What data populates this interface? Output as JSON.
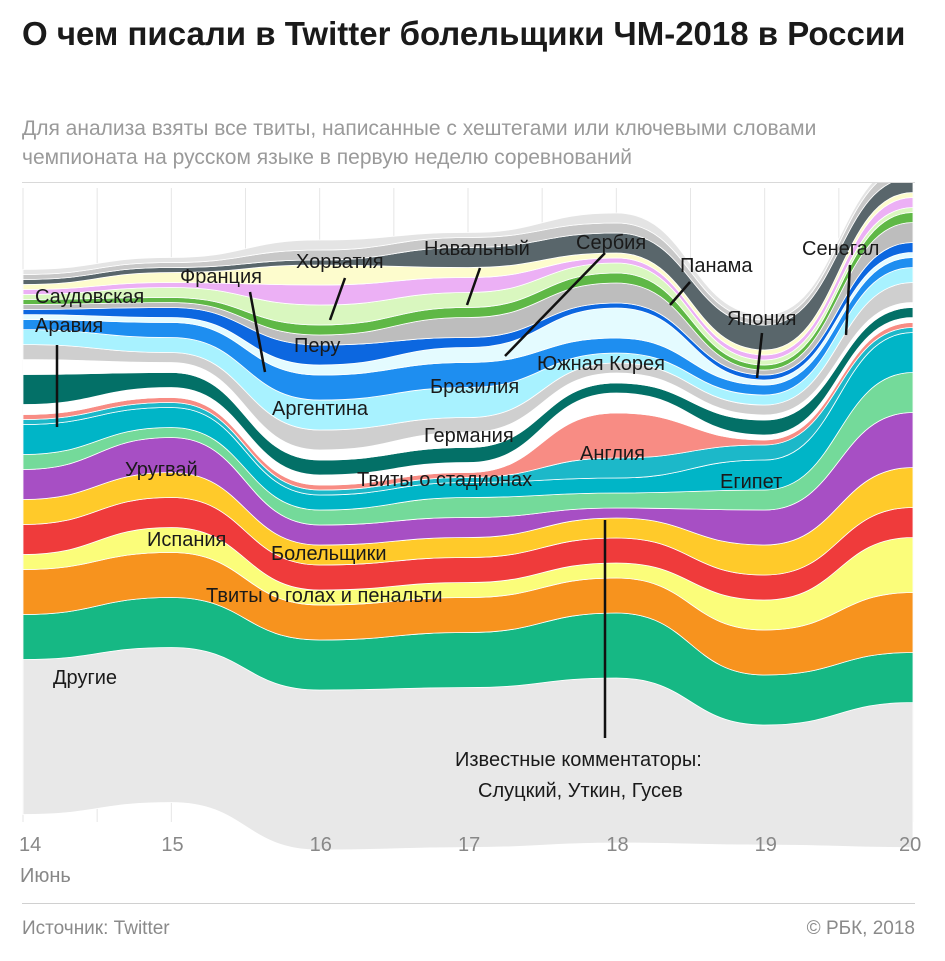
{
  "title": "О чем писали в Twitter болельщики ЧМ-2018 в России",
  "subtitle": "Для анализа взяты все твиты, написанные с хештегами или ключевыми словами чемпионата на русском языке в первую неделю соревнований",
  "source": "Источник: Twitter",
  "copyright": "© РБК, 2018",
  "chart_data": {
    "type": "area",
    "subtype": "streamgraph",
    "x_ticks": [
      "14",
      "15",
      "16",
      "17",
      "18",
      "19",
      "20"
    ],
    "x_unit_label": "Июнь",
    "grid": "vertical",
    "series": [
      {
        "name": "Другие",
        "color": "#e8e8e8",
        "values": [
          15.5,
          15.5,
          16,
          16,
          16.5,
          12,
          14.5
        ]
      },
      {
        "name": "Твиты о голах и пенальти",
        "color": "#16b884",
        "values": [
          4.5,
          5,
          5,
          5.5,
          6.5,
          5,
          5
        ]
      },
      {
        "name": "Болельщики",
        "color": "#f7931e",
        "values": [
          4.5,
          4.5,
          3.5,
          3.5,
          3.5,
          4.5,
          6
        ]
      },
      {
        "name": "Испания",
        "color": "#fbfd7a",
        "values": [
          1.5,
          2.5,
          1.5,
          1.5,
          1.5,
          3,
          5.5
        ]
      },
      {
        "name": "",
        "color": "#ef3b3b",
        "values": [
          3,
          3,
          2.5,
          2.5,
          2.5,
          2.5,
          3
        ]
      },
      {
        "name": "",
        "color": "#ffca2a",
        "values": [
          2.5,
          2.5,
          2,
          2,
          2,
          3,
          4
        ]
      },
      {
        "name": "Уругвай",
        "color": "#a74fc4",
        "values": [
          3,
          3.5,
          2,
          2,
          1,
          3.5,
          5.5
        ]
      },
      {
        "name": "Твиты о стадионах",
        "color": "#74da9a",
        "values": [
          1.5,
          1,
          1.5,
          2,
          1.5,
          2,
          4
        ]
      },
      {
        "name": "",
        "color": "#00b5c7",
        "values": [
          3,
          2,
          1.5,
          1.5,
          1.5,
          3,
          4
        ]
      },
      {
        "name": "Египет",
        "color": "#1cb8c9",
        "values": [
          0.5,
          0.5,
          0.5,
          0.5,
          2,
          1.5,
          0.5
        ]
      },
      {
        "name": "Англия",
        "color": "#f88c84",
        "values": [
          0.5,
          0.5,
          0.5,
          0.5,
          4.5,
          0.5,
          0.5
        ]
      },
      {
        "name": "Германия",
        "color": "#ffffff",
        "values": [
          1,
          1,
          1,
          1,
          2,
          0.5,
          0.5
        ]
      },
      {
        "name": "Саудовская Аравия",
        "color": "#037067",
        "values": [
          3,
          1.5,
          1.5,
          1.5,
          1,
          1.5,
          1
        ]
      },
      {
        "name": "Бразилия",
        "color": "#ffffff",
        "values": [
          1.5,
          1,
          1,
          1.5,
          1,
          0.5,
          0.5
        ]
      },
      {
        "name": "",
        "color": "#cfcfcf",
        "values": [
          1.5,
          1,
          2,
          1.5,
          1,
          1,
          2
        ]
      },
      {
        "name": "Аргентина",
        "color": "#a8f2ff",
        "values": [
          1.5,
          1.5,
          3,
          3,
          1,
          1,
          1.5
        ]
      },
      {
        "name": "",
        "color": "#1e8ef0",
        "values": [
          1,
          1.5,
          2.5,
          2.5,
          1.5,
          1,
          1
        ]
      },
      {
        "name": "Южная Корея",
        "color": "#e4fbff",
        "values": [
          0.5,
          0.5,
          1,
          1.5,
          3,
          0.5,
          0.5
        ]
      },
      {
        "name": "",
        "color": "#0c67e0",
        "values": [
          0.5,
          1,
          2,
          1,
          0.5,
          0.5,
          1
        ]
      },
      {
        "name": "Сербия",
        "color": "#bdbdbd",
        "values": [
          0.5,
          0.5,
          1,
          2,
          2,
          0.5,
          2
        ]
      },
      {
        "name": "Франция",
        "color": "#5fb846",
        "values": [
          0.5,
          0.5,
          1,
          1,
          1,
          0.5,
          1
        ]
      },
      {
        "name": "Перу",
        "color": "#d9f7bf",
        "values": [
          0.5,
          1,
          2,
          1.5,
          1,
          0.5,
          0.5
        ]
      },
      {
        "name": "Хорватия",
        "color": "#ecb0f5",
        "values": [
          0.5,
          0.5,
          2,
          1.5,
          0.5,
          0.5,
          1
        ]
      },
      {
        "name": "Навальный",
        "color": "#fdfccd",
        "values": [
          0.5,
          1,
          2,
          1,
          0.5,
          0.5,
          0.5
        ]
      },
      {
        "name": "Япония",
        "color": "#59666b",
        "values": [
          0.5,
          0.5,
          0.5,
          2,
          2,
          2.5,
          1.5
        ]
      },
      {
        "name": "Панама",
        "color": "#c8c8c8",
        "values": [
          0.5,
          0.5,
          1,
          1,
          1,
          0.5,
          1
        ]
      },
      {
        "name": "Сенегал",
        "color": "#e4e4e4",
        "values": [
          0.5,
          0.5,
          1,
          0.5,
          1,
          0.5,
          0.5
        ]
      }
    ],
    "annotations": [
      "Известные комментаторы:",
      "Слуцкий, Уткин, Гусев"
    ]
  }
}
